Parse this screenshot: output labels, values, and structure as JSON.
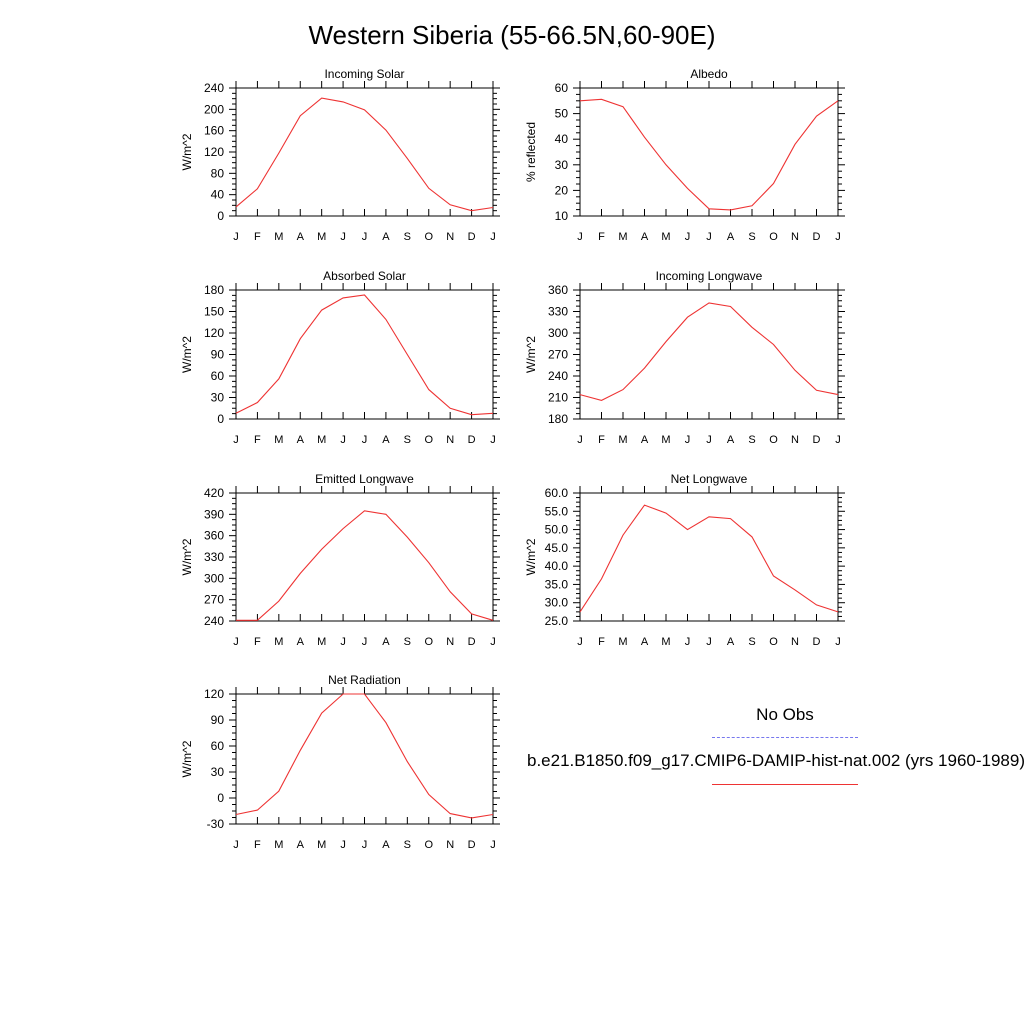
{
  "title": "Western Siberia (55-66.5N,60-90E)",
  "legend": {
    "obs_label": "No Obs",
    "model_label": "b.e21.B1850.f09_g17.CMIP6-DAMIP-hist-nat.002 (yrs 1960-1989)",
    "obs_color": "#7777ee",
    "model_color": "#ee3333"
  },
  "chart_data": [
    {
      "type": "line",
      "title": "Incoming Solar",
      "ylabel": "W/m^2",
      "categories": [
        "J",
        "F",
        "M",
        "A",
        "M",
        "J",
        "J",
        "A",
        "S",
        "O",
        "N",
        "D",
        "J"
      ],
      "ylim": [
        0,
        240
      ],
      "yticks": [
        "0",
        "40",
        "80",
        "120",
        "160",
        "200",
        "240"
      ],
      "series": [
        {
          "values": [
            17,
            51,
            118,
            188,
            221,
            214,
            199,
            161,
            108,
            52,
            21,
            10,
            16
          ]
        }
      ]
    },
    {
      "type": "line",
      "title": "Albedo",
      "ylabel": "% reflected",
      "categories": [
        "J",
        "F",
        "M",
        "A",
        "M",
        "J",
        "J",
        "A",
        "S",
        "O",
        "N",
        "D",
        "J"
      ],
      "ylim": [
        10,
        60
      ],
      "yticks": [
        "10",
        "20",
        "30",
        "40",
        "50",
        "60"
      ],
      "series": [
        {
          "values": [
            55.0,
            55.6,
            52.7,
            40.8,
            30.0,
            20.8,
            12.8,
            12.4,
            14.0,
            22.7,
            38.0,
            49.0,
            55.0
          ]
        }
      ]
    },
    {
      "type": "line",
      "title": "Absorbed Solar",
      "ylabel": "W/m^2",
      "categories": [
        "J",
        "F",
        "M",
        "A",
        "M",
        "J",
        "J",
        "A",
        "S",
        "O",
        "N",
        "D",
        "J"
      ],
      "ylim": [
        0,
        180
      ],
      "yticks": [
        "0",
        "30",
        "60",
        "90",
        "120",
        "150",
        "180"
      ],
      "series": [
        {
          "values": [
            8,
            23,
            56,
            112,
            152,
            169,
            173,
            139,
            90,
            41,
            15,
            6,
            8
          ]
        }
      ]
    },
    {
      "type": "line",
      "title": "Incoming Longwave",
      "ylabel": "W/m^2",
      "categories": [
        "J",
        "F",
        "M",
        "A",
        "M",
        "J",
        "J",
        "A",
        "S",
        "O",
        "N",
        "D",
        "J"
      ],
      "ylim": [
        180,
        360
      ],
      "yticks": [
        "180",
        "210",
        "240",
        "270",
        "300",
        "330",
        "360"
      ],
      "series": [
        {
          "values": [
            214,
            206,
            221,
            251,
            288,
            322,
            342,
            337,
            308,
            284,
            248,
            220,
            214
          ]
        }
      ]
    },
    {
      "type": "line",
      "title": "Emitted Longwave",
      "ylabel": "W/m^2",
      "categories": [
        "J",
        "F",
        "M",
        "A",
        "M",
        "J",
        "J",
        "A",
        "S",
        "O",
        "N",
        "D",
        "J"
      ],
      "ylim": [
        240,
        420
      ],
      "yticks": [
        "240",
        "270",
        "300",
        "330",
        "360",
        "390",
        "420"
      ],
      "series": [
        {
          "values": [
            241,
            241,
            268,
            307,
            341,
            370,
            395,
            390,
            358,
            322,
            281,
            250,
            241
          ]
        }
      ]
    },
    {
      "type": "line",
      "title": "Net Longwave",
      "ylabel": "W/m^2",
      "categories": [
        "J",
        "F",
        "M",
        "A",
        "M",
        "J",
        "J",
        "A",
        "S",
        "O",
        "N",
        "D",
        "J"
      ],
      "ylim": [
        25,
        60
      ],
      "yticks": [
        "25.0",
        "30.0",
        "35.0",
        "40.0",
        "45.0",
        "50.0",
        "55.0",
        "60.0"
      ],
      "series": [
        {
          "values": [
            27.5,
            36.5,
            48.5,
            56.7,
            54.5,
            50.0,
            53.5,
            53.0,
            48.0,
            37.3,
            33.5,
            29.4,
            27.5
          ]
        }
      ]
    },
    {
      "type": "line",
      "title": "Net Radiation",
      "ylabel": "W/m^2",
      "categories": [
        "J",
        "F",
        "M",
        "A",
        "M",
        "J",
        "J",
        "A",
        "S",
        "O",
        "N",
        "D",
        "J"
      ],
      "ylim": [
        -30,
        120
      ],
      "yticks": [
        "-30",
        "0",
        "30",
        "60",
        "90",
        "120"
      ],
      "series": [
        {
          "values": [
            -19,
            -14,
            8,
            55,
            98,
            120,
            120,
            87,
            42,
            4,
            -18,
            -23,
            -19
          ]
        }
      ]
    }
  ]
}
